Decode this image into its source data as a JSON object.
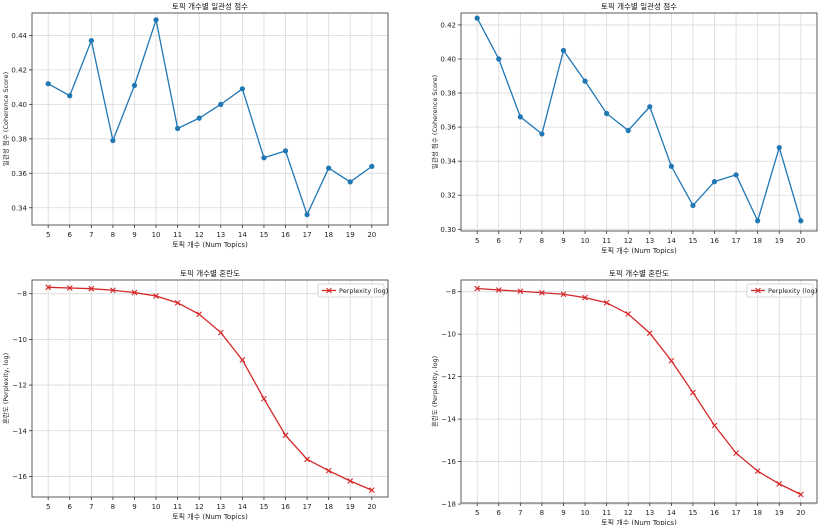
{
  "chart_data": [
    {
      "type": "line",
      "title": "토픽 개수별 일관성 점수",
      "xlabel": "토픽 개수 (Num Topics)",
      "ylabel": "일관성 점수 (Coherence Score)",
      "x": [
        5,
        6,
        7,
        8,
        9,
        10,
        11,
        12,
        13,
        14,
        15,
        16,
        17,
        18,
        19,
        20
      ],
      "series": [
        {
          "values": [
            0.412,
            0.405,
            0.437,
            0.379,
            0.411,
            0.449,
            0.386,
            0.392,
            0.4,
            0.409,
            0.369,
            0.373,
            0.336,
            0.363,
            0.355,
            0.364
          ],
          "color": "#1f77b4",
          "marker": "circle"
        }
      ],
      "ylim": [
        0.33,
        0.453
      ],
      "yticks": [
        0.34,
        0.36,
        0.38,
        0.4,
        0.42,
        0.44
      ],
      "ytick_labels": [
        "0.34",
        "0.36",
        "0.38",
        "0.40",
        "0.42",
        "0.44"
      ],
      "grid": true,
      "legend": null
    },
    {
      "type": "line",
      "title": "토픽 개수별 일관성 점수",
      "xlabel": "토픽 개수 (Num Topics)",
      "ylabel": "일관성 점수 (Coherence Score)",
      "x": [
        5,
        6,
        7,
        8,
        9,
        10,
        11,
        12,
        13,
        14,
        15,
        16,
        17,
        18,
        19,
        20
      ],
      "series": [
        {
          "values": [
            0.424,
            0.4,
            0.366,
            0.356,
            0.405,
            0.387,
            0.368,
            0.358,
            0.372,
            0.337,
            0.314,
            0.328,
            0.332,
            0.305,
            0.348,
            0.305
          ],
          "color": "#1f77b4",
          "marker": "circle"
        }
      ],
      "ylim": [
        0.299,
        0.427
      ],
      "yticks": [
        0.3,
        0.32,
        0.34,
        0.36,
        0.38,
        0.4,
        0.42
      ],
      "ytick_labels": [
        "0.30",
        "0.32",
        "0.34",
        "0.36",
        "0.38",
        "0.40",
        "0.42"
      ],
      "grid": true,
      "legend": null
    },
    {
      "type": "line",
      "title": "토픽 개수별 혼란도",
      "xlabel": "토픽 개수 (Num Topics)",
      "ylabel": "혼란도 (Perplexity, log)",
      "x": [
        5,
        6,
        7,
        8,
        9,
        10,
        11,
        12,
        13,
        14,
        15,
        16,
        17,
        18,
        19,
        20
      ],
      "series": [
        {
          "name": "Perplexity (log)",
          "values": [
            -7.72,
            -7.75,
            -7.78,
            -7.85,
            -7.95,
            -8.1,
            -8.4,
            -8.9,
            -9.7,
            -10.9,
            -12.6,
            -14.2,
            -15.25,
            -15.75,
            -16.2,
            -16.6
          ],
          "color": "#d62728",
          "marker": "x"
        }
      ],
      "ylim": [
        -16.9,
        -7.4
      ],
      "yticks": [
        -8,
        -10,
        -12,
        -14,
        -16
      ],
      "ytick_labels": [
        "−8",
        "−10",
        "−12",
        "−14",
        "−16"
      ],
      "grid": true,
      "legend": "top-right"
    },
    {
      "type": "line",
      "title": "토픽 개수별 혼란도",
      "xlabel": "토픽 개수 (Num Topics)",
      "ylabel": "혼란도 (Perplexity, log)",
      "x": [
        5,
        6,
        7,
        8,
        9,
        10,
        11,
        12,
        13,
        14,
        15,
        16,
        17,
        18,
        19,
        20
      ],
      "series": [
        {
          "name": "Perplexity (log)",
          "values": [
            -7.85,
            -7.92,
            -7.98,
            -8.05,
            -8.12,
            -8.28,
            -8.52,
            -9.05,
            -9.95,
            -11.25,
            -12.75,
            -14.3,
            -15.6,
            -16.45,
            -17.05,
            -17.55
          ],
          "color": "#d62728",
          "marker": "x"
        }
      ],
      "ylim": [
        -17.95,
        -7.45
      ],
      "yticks": [
        -8,
        -10,
        -12,
        -14,
        -16,
        -18
      ],
      "ytick_labels": [
        "−8",
        "−10",
        "−12",
        "−14",
        "−16",
        "−18"
      ],
      "grid": true,
      "legend": "top-right"
    }
  ]
}
